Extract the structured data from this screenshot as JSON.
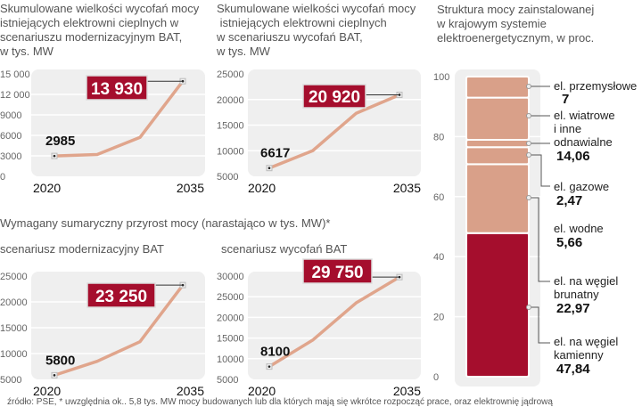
{
  "titles": {
    "chart1": [
      "Skumulowane wielkości wycofań mocy",
      "istniejących elektrowni cieplnych w",
      "scenariuszu modernizacyjnym BAT,",
      "w tys. MW"
    ],
    "chart2": [
      "Skumulowane wielkości wycofań mocy",
      " istniejących elektrowni cieplnych",
      "w scenariuszu wycofań BAT,",
      "w tys. MW"
    ],
    "section2": "Wymagany sumaryczny przyrost mocy (narastająco w tys. MW)*",
    "chart3": "scenariusz modernizacyjny BAT",
    "chart4": "scenariusz wycofań BAT",
    "bar": [
      "Struktura mocy zainstalowanej",
      "w krajowym systemie",
      "elektroenergetycznym, w proc."
    ]
  },
  "footnote": "źródło: PSE, * uwzględnia ok.. 5,8 tys. MW mocy budowanych lub dla których mają się wkrótce rozpocząć prace, oraz elektrownię jądrową",
  "colors": {
    "line": "#e0a58c",
    "highlight": "#a50e2d",
    "segment": "#d9a089",
    "panel": "#efefef"
  },
  "chart_data": [
    {
      "type": "line",
      "title": "Skumulowane wielkości wycofań mocy istniejących elektrowni cieplnych w scenariuszu modernizacyjnym BAT, w tys. MW",
      "x": [
        2020,
        2025,
        2030,
        2035
      ],
      "y": [
        2985,
        3200,
        5700,
        13930
      ],
      "ylim": [
        0,
        15000
      ],
      "yticks": [
        "15 000",
        "12 000",
        "9000",
        "6000",
        "3000",
        "0"
      ],
      "xticks": [
        "2020",
        "2035"
      ],
      "start_label": "2985",
      "end_label": "13 930"
    },
    {
      "type": "line",
      "title": "Skumulowane wielkości wycofań mocy istniejących elektrowni cieplnych w scenariuszu wycofań BAT, w tys. MW",
      "x": [
        2020,
        2025,
        2030,
        2035
      ],
      "y": [
        6617,
        10000,
        17300,
        20920
      ],
      "ylim": [
        5000,
        25000
      ],
      "yticks": [
        "25000",
        "20000",
        "15000",
        "10000",
        "5000"
      ],
      "xticks": [
        "2020",
        "2035"
      ],
      "start_label": "6617",
      "end_label": "20 920"
    },
    {
      "type": "line",
      "title": "Wymagany sumaryczny przyrost mocy – scenariusz modernizacyjny BAT",
      "x": [
        2020,
        2025,
        2030,
        2035
      ],
      "y": [
        5800,
        8500,
        12300,
        23250
      ],
      "ylim": [
        5000,
        25000
      ],
      "yticks": [
        "25000",
        "20000",
        "15000",
        "10000",
        "5000"
      ],
      "xticks": [
        "2020",
        "2035"
      ],
      "start_label": "5800",
      "end_label": "23 250"
    },
    {
      "type": "line",
      "title": "Wymagany sumaryczny przyrost mocy – scenariusz wycofań BAT",
      "x": [
        2020,
        2025,
        2030,
        2035
      ],
      "y": [
        8100,
        14500,
        23500,
        29750
      ],
      "ylim": [
        5000,
        30000
      ],
      "yticks": [
        "30000",
        "25000",
        "20000",
        "15000",
        "10000",
        "5000"
      ],
      "xticks": [
        "2020",
        "2035"
      ],
      "start_label": "8100",
      "end_label": "29 750"
    },
    {
      "type": "bar",
      "title": "Struktura mocy zainstalowanej w krajowym systemie elektroenergetycznym, w proc.",
      "ylim": [
        0,
        100
      ],
      "yticks": [
        "100",
        "80",
        "60",
        "40",
        "20",
        "0"
      ],
      "segments": [
        {
          "name": "el. na węgiel kamienny",
          "lines": [
            "el. na węgiel",
            "kamienny"
          ],
          "value": 47.84,
          "label": "47,84",
          "highlight": true
        },
        {
          "name": "el. na węgiel brunatny",
          "lines": [
            "el. na węgiel",
            "brunatny"
          ],
          "value": 22.97,
          "label": "22,97"
        },
        {
          "name": "el. wodne",
          "lines": [
            "el. wodne"
          ],
          "value": 5.66,
          "label": "5,66"
        },
        {
          "name": "el. gazowe",
          "lines": [
            "el. gazowe"
          ],
          "value": 2.47,
          "label": "2,47"
        },
        {
          "name": "el. wiatrowe i inne odnawialne",
          "lines": [
            "el. wiatrowe",
            "i inne",
            "odnawialne"
          ],
          "value": 14.06,
          "label": "14,06"
        },
        {
          "name": "el. przemysłowe",
          "lines": [
            "el. przemysłowe"
          ],
          "value": 7,
          "label": "7"
        }
      ]
    }
  ]
}
